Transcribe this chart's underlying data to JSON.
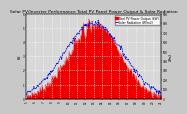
{
  "title": "Solar PV/Inverter Performance Total PV Panel Power Output & Solar Radiation",
  "title_fontsize": 3.2,
  "bg_color": "#c8c8c8",
  "plot_bg_color": "#d8d8d8",
  "red_color": "#ee0000",
  "blue_color": "#0000dd",
  "grid_color": "#ffffff",
  "ylabel_left": "kW",
  "ylabel_right": "W/m2",
  "ylim_left": [
    0,
    6
  ],
  "ylim_right": [
    0,
    900
  ],
  "legend_labels": [
    "Total PV Power Output (kW)",
    "Solar Radiation (W/m2)"
  ],
  "legend_fontsize": 2.2,
  "time_labels": [
    "5",
    "6",
    "7",
    "8",
    "9",
    "10",
    "11",
    "12",
    "13",
    "14",
    "15",
    "16",
    "17",
    "18",
    "19",
    "20",
    "21"
  ],
  "yticks_left": [
    0,
    1,
    2,
    3,
    4,
    5,
    6
  ],
  "yticks_right": [
    0,
    100,
    200,
    300,
    400,
    500,
    600,
    700,
    800,
    900
  ]
}
